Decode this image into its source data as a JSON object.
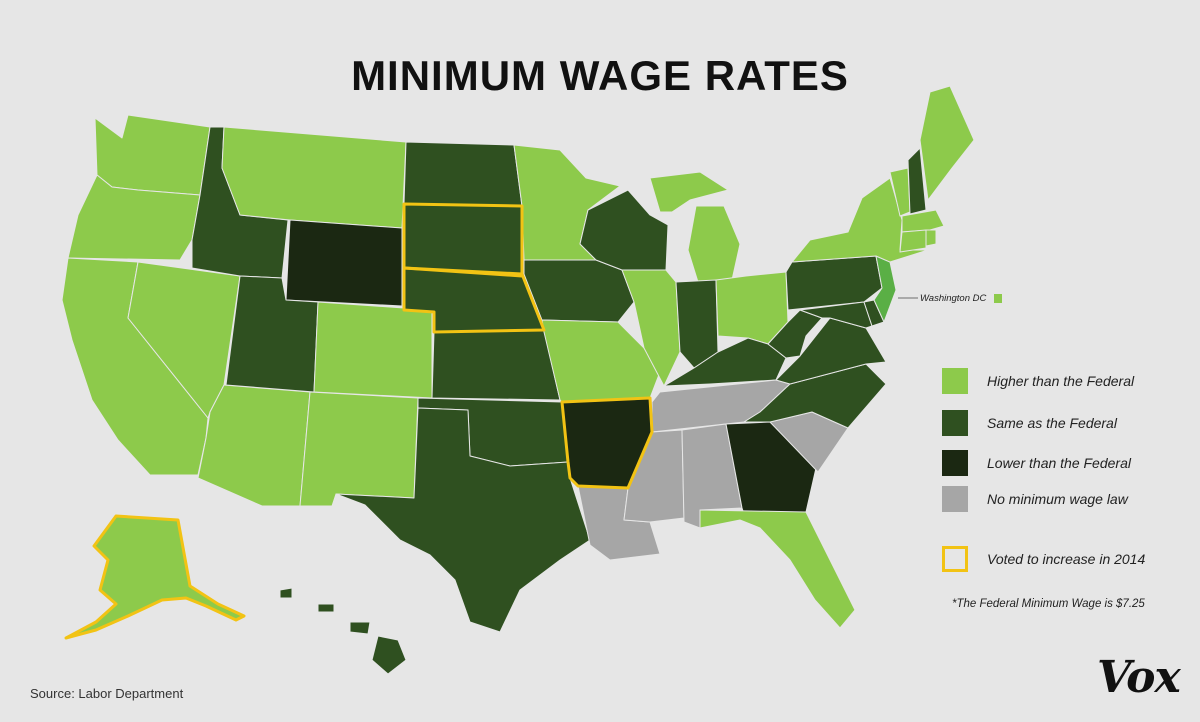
{
  "title": "MINIMUM WAGE RATES",
  "colors": {
    "background": "#e6e6e6",
    "higher": "#8dca4b",
    "same": "#2f5020",
    "lower": "#1b2812",
    "none": "#a6a6a6",
    "nj": "#5aaf45",
    "voted_outline": "#f2c314"
  },
  "legend": [
    {
      "key": "higher",
      "label": "Higher than the Federal"
    },
    {
      "key": "same",
      "label": "Same as the Federal"
    },
    {
      "key": "lower",
      "label": "Lower than the Federal"
    },
    {
      "key": "none",
      "label": "No minimum wage law"
    },
    {
      "key": "voted",
      "label": "Voted to increase in 2014"
    }
  ],
  "dc_label": "Washington DC",
  "footnote": "*The Federal Minimum Wage is $7.25",
  "source": "Source:  Labor Department",
  "brand": "Vox",
  "state_categories": {
    "WA": "higher",
    "OR": "higher",
    "CA": "higher",
    "NV": "higher",
    "AZ": "higher",
    "MT": "higher",
    "CO": "higher",
    "NM": "higher",
    "MN": "higher",
    "MO": "higher",
    "IL": "higher",
    "MI": "higher",
    "OH": "higher",
    "FL": "higher",
    "NY": "higher",
    "VT": "higher",
    "ME": "higher",
    "MA": "higher",
    "CT": "higher",
    "RI": "higher",
    "AK": "higher",
    "DC": "higher",
    "NJ": "nj",
    "ID": "same",
    "UT": "same",
    "ND": "same",
    "SD": "same",
    "NE": "same",
    "KS": "same",
    "OK": "same",
    "TX": "same",
    "IA": "same",
    "WI": "same",
    "IN": "same",
    "KY": "same",
    "PA": "same",
    "WV": "same",
    "VA": "same",
    "NC": "same",
    "MD": "same",
    "DE": "same",
    "NH": "same",
    "HI": "same",
    "WY": "lower",
    "AR": "lower",
    "GA": "lower",
    "TN": "none",
    "MS": "none",
    "AL": "none",
    "LA": "none",
    "SC": "none"
  },
  "voted_2014": [
    "AK",
    "SD",
    "NE",
    "AR"
  ]
}
